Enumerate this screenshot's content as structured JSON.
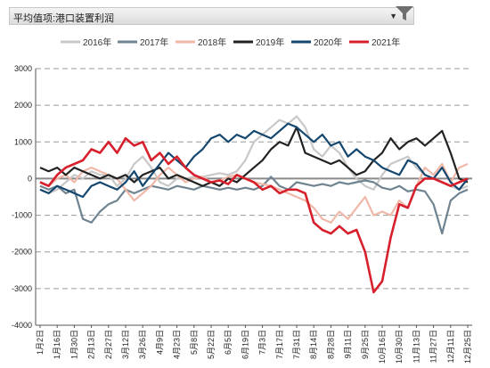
{
  "header": {
    "title": "平均值项:港口装置利润"
  },
  "chart_data": {
    "type": "line",
    "title": "",
    "xlabel": "",
    "ylabel": "",
    "ylim": [
      -4000,
      3000
    ],
    "yticks": [
      3000,
      2000,
      1000,
      0,
      -1000,
      -2000,
      -3000,
      -4000
    ],
    "x_tick_labels": [
      "1月2日",
      "1月16日",
      "1月30日",
      "2月13日",
      "2月27日",
      "3月12日",
      "3月26日",
      "4月9日",
      "4月23日",
      "5月8日",
      "5月22日",
      "6月5日",
      "6月19日",
      "7月3日",
      "7月17日",
      "7月31日",
      "8月14日",
      "8月28日",
      "9月11日",
      "9月25日",
      "10月16日",
      "10月30日",
      "11月13日",
      "11月27日",
      "12月11日",
      "12月25日"
    ],
    "x_index_range": [
      0,
      25
    ],
    "grid": "horizontal dashed",
    "legend_position": "top",
    "series": [
      {
        "name": "2016年",
        "color": "#c8c8c8",
        "points": [
          [
            0,
            -300
          ],
          [
            0.5,
            -400
          ],
          [
            1,
            -300
          ],
          [
            1.5,
            -100
          ],
          [
            2,
            100
          ],
          [
            2.5,
            0
          ],
          [
            3,
            200
          ],
          [
            3.5,
            100
          ],
          [
            4,
            100
          ],
          [
            4.5,
            -200
          ],
          [
            5,
            0
          ],
          [
            5.5,
            400
          ],
          [
            6,
            600
          ],
          [
            6.5,
            300
          ],
          [
            7,
            -100
          ],
          [
            7.5,
            -200
          ],
          [
            8,
            0
          ],
          [
            8.5,
            0
          ],
          [
            9,
            50
          ],
          [
            9.5,
            50
          ],
          [
            10,
            100
          ],
          [
            10.5,
            150
          ],
          [
            11,
            100
          ],
          [
            11.5,
            200
          ],
          [
            12,
            500
          ],
          [
            12.5,
            1000
          ],
          [
            13,
            1200
          ],
          [
            13.5,
            1400
          ],
          [
            14,
            1600
          ],
          [
            14.5,
            1500
          ],
          [
            15,
            1700
          ],
          [
            15.5,
            1400
          ],
          [
            16,
            800
          ],
          [
            16.5,
            600
          ],
          [
            17,
            900
          ],
          [
            17.5,
            700
          ],
          [
            18,
            300
          ],
          [
            18.5,
            0
          ],
          [
            19,
            -200
          ],
          [
            19.5,
            -300
          ],
          [
            20,
            100
          ],
          [
            20.5,
            400
          ],
          [
            21,
            500
          ],
          [
            21.5,
            600
          ],
          [
            22,
            300
          ],
          [
            22.5,
            100
          ],
          [
            23,
            0
          ],
          [
            23.5,
            -100
          ],
          [
            24,
            -200
          ],
          [
            24.5,
            -300
          ],
          [
            25,
            -200
          ]
        ]
      },
      {
        "name": "2017年",
        "color": "#6f8390",
        "points": [
          [
            0,
            -200
          ],
          [
            0.5,
            -300
          ],
          [
            1,
            -200
          ],
          [
            1.5,
            -400
          ],
          [
            2,
            -300
          ],
          [
            2.5,
            -1100
          ],
          [
            3,
            -1200
          ],
          [
            3.5,
            -900
          ],
          [
            4,
            -700
          ],
          [
            4.5,
            -600
          ],
          [
            5,
            -300
          ],
          [
            5.5,
            -400
          ],
          [
            6,
            -300
          ],
          [
            6.5,
            -200
          ],
          [
            7,
            -250
          ],
          [
            7.5,
            -300
          ],
          [
            8,
            -200
          ],
          [
            8.5,
            -250
          ],
          [
            9,
            -300
          ],
          [
            9.5,
            -200
          ],
          [
            10,
            -250
          ],
          [
            10.5,
            -300
          ],
          [
            11,
            -250
          ],
          [
            11.5,
            -300
          ],
          [
            12,
            -250
          ],
          [
            12.5,
            -300
          ],
          [
            13,
            -200
          ],
          [
            13.5,
            50
          ],
          [
            14,
            -200
          ],
          [
            14.5,
            -300
          ],
          [
            15,
            -100
          ],
          [
            15.5,
            -150
          ],
          [
            16,
            -200
          ],
          [
            16.5,
            -150
          ],
          [
            17,
            -200
          ],
          [
            17.5,
            -100
          ],
          [
            18,
            -150
          ],
          [
            18.5,
            -100
          ],
          [
            19,
            -50
          ],
          [
            19.5,
            -100
          ],
          [
            20,
            -250
          ],
          [
            20.5,
            -300
          ],
          [
            21,
            -200
          ],
          [
            21.5,
            -350
          ],
          [
            22,
            -300
          ],
          [
            22.5,
            -350
          ],
          [
            23,
            -700
          ],
          [
            23.5,
            -1500
          ],
          [
            24,
            -600
          ],
          [
            24.5,
            -400
          ],
          [
            25,
            -300
          ]
        ]
      },
      {
        "name": "2018年",
        "color": "#f0b8a8",
        "points": [
          [
            0,
            -100
          ],
          [
            0.5,
            -200
          ],
          [
            1,
            0
          ],
          [
            1.5,
            100
          ],
          [
            2,
            -100
          ],
          [
            2.5,
            200
          ],
          [
            3,
            300
          ],
          [
            3.5,
            200
          ],
          [
            4,
            100
          ],
          [
            4.5,
            0
          ],
          [
            5,
            -300
          ],
          [
            5.5,
            -600
          ],
          [
            6,
            -400
          ],
          [
            6.5,
            -200
          ],
          [
            7,
            100
          ],
          [
            7.5,
            300
          ],
          [
            8,
            100
          ],
          [
            8.5,
            -100
          ],
          [
            9,
            0
          ],
          [
            9.5,
            50
          ],
          [
            10,
            -100
          ],
          [
            10.5,
            -50
          ],
          [
            11,
            50
          ],
          [
            11.5,
            100
          ],
          [
            12,
            0
          ],
          [
            12.5,
            -100
          ],
          [
            13,
            -150
          ],
          [
            13.5,
            -200
          ],
          [
            14,
            -300
          ],
          [
            14.5,
            -400
          ],
          [
            15,
            -500
          ],
          [
            15.5,
            -600
          ],
          [
            16,
            -800
          ],
          [
            16.5,
            -1100
          ],
          [
            17,
            -1200
          ],
          [
            17.5,
            -900
          ],
          [
            18,
            -1100
          ],
          [
            18.5,
            -800
          ],
          [
            19,
            -500
          ],
          [
            19.5,
            -1000
          ],
          [
            20,
            -900
          ],
          [
            20.5,
            -1000
          ],
          [
            21,
            -600
          ],
          [
            21.5,
            -800
          ],
          [
            22,
            -200
          ],
          [
            22.5,
            300
          ],
          [
            23,
            100
          ],
          [
            23.5,
            400
          ],
          [
            24,
            -100
          ],
          [
            24.5,
            300
          ],
          [
            25,
            400
          ]
        ]
      },
      {
        "name": "2019年",
        "color": "#222222",
        "points": [
          [
            0,
            300
          ],
          [
            0.5,
            200
          ],
          [
            1,
            300
          ],
          [
            1.5,
            100
          ],
          [
            2,
            300
          ],
          [
            2.5,
            200
          ],
          [
            3,
            100
          ],
          [
            3.5,
            0
          ],
          [
            4,
            100
          ],
          [
            4.5,
            0
          ],
          [
            5,
            100
          ],
          [
            5.5,
            -100
          ],
          [
            6,
            100
          ],
          [
            6.5,
            200
          ],
          [
            7,
            300
          ],
          [
            7.5,
            0
          ],
          [
            8,
            100
          ],
          [
            8.5,
            0
          ],
          [
            9,
            -100
          ],
          [
            9.5,
            -200
          ],
          [
            10,
            -100
          ],
          [
            10.5,
            -200
          ],
          [
            11,
            0
          ],
          [
            11.5,
            -100
          ],
          [
            12,
            100
          ],
          [
            12.5,
            300
          ],
          [
            13,
            500
          ],
          [
            13.5,
            800
          ],
          [
            14,
            1000
          ],
          [
            14.5,
            900
          ],
          [
            15,
            1400
          ],
          [
            15.5,
            700
          ],
          [
            16,
            600
          ],
          [
            16.5,
            500
          ],
          [
            17,
            400
          ],
          [
            17.5,
            500
          ],
          [
            18,
            300
          ],
          [
            18.5,
            100
          ],
          [
            19,
            200
          ],
          [
            19.5,
            500
          ],
          [
            20,
            700
          ],
          [
            20.5,
            1100
          ],
          [
            21,
            800
          ],
          [
            21.5,
            1000
          ],
          [
            22,
            1100
          ],
          [
            22.5,
            900
          ],
          [
            23,
            1100
          ],
          [
            23.5,
            1300
          ],
          [
            24,
            700
          ],
          [
            24.5,
            0
          ],
          [
            25,
            -100
          ]
        ]
      },
      {
        "name": "2020年",
        "color": "#14466e",
        "points": [
          [
            0,
            -300
          ],
          [
            0.5,
            -400
          ],
          [
            1,
            -200
          ],
          [
            1.5,
            -300
          ],
          [
            2,
            -400
          ],
          [
            2.5,
            -500
          ],
          [
            3,
            -200
          ],
          [
            3.5,
            -100
          ],
          [
            4,
            -200
          ],
          [
            4.5,
            -300
          ],
          [
            5,
            -100
          ],
          [
            5.5,
            200
          ],
          [
            6,
            -200
          ],
          [
            6.5,
            100
          ],
          [
            7,
            400
          ],
          [
            7.5,
            700
          ],
          [
            8,
            500
          ],
          [
            8.5,
            300
          ],
          [
            9,
            600
          ],
          [
            9.5,
            800
          ],
          [
            10,
            1100
          ],
          [
            10.5,
            1200
          ],
          [
            11,
            1000
          ],
          [
            11.5,
            1200
          ],
          [
            12,
            1100
          ],
          [
            12.5,
            1300
          ],
          [
            13,
            1200
          ],
          [
            13.5,
            1100
          ],
          [
            14,
            1300
          ],
          [
            14.5,
            1500
          ],
          [
            15,
            1400
          ],
          [
            15.5,
            1200
          ],
          [
            16,
            1000
          ],
          [
            16.5,
            1200
          ],
          [
            17,
            900
          ],
          [
            17.5,
            1000
          ],
          [
            18,
            600
          ],
          [
            18.5,
            800
          ],
          [
            19,
            600
          ],
          [
            19.5,
            500
          ],
          [
            20,
            300
          ],
          [
            20.5,
            200
          ],
          [
            21,
            100
          ],
          [
            21.5,
            500
          ],
          [
            22,
            400
          ],
          [
            22.5,
            100
          ],
          [
            23,
            0
          ],
          [
            23.5,
            300
          ],
          [
            24,
            -100
          ],
          [
            24.5,
            -300
          ],
          [
            25,
            0
          ]
        ]
      },
      {
        "name": "2021年",
        "color": "#d7202c",
        "points": [
          [
            0,
            -100
          ],
          [
            0.5,
            -200
          ],
          [
            1,
            100
          ],
          [
            1.5,
            300
          ],
          [
            2,
            400
          ],
          [
            2.5,
            500
          ],
          [
            3,
            800
          ],
          [
            3.5,
            700
          ],
          [
            4,
            1000
          ],
          [
            4.5,
            700
          ],
          [
            5,
            1100
          ],
          [
            5.5,
            900
          ],
          [
            6,
            1000
          ],
          [
            6.5,
            500
          ],
          [
            7,
            700
          ],
          [
            7.5,
            400
          ],
          [
            8,
            600
          ],
          [
            8.5,
            300
          ],
          [
            9,
            100
          ],
          [
            9.5,
            0
          ],
          [
            10,
            -100
          ],
          [
            10.5,
            -50
          ],
          [
            11,
            -150
          ],
          [
            11.5,
            100
          ],
          [
            12,
            0
          ],
          [
            12.5,
            -100
          ],
          [
            13,
            -300
          ],
          [
            13.5,
            -200
          ],
          [
            14,
            -400
          ],
          [
            14.5,
            -300
          ],
          [
            15,
            -300
          ],
          [
            15.5,
            -400
          ],
          [
            16,
            -1200
          ],
          [
            16.5,
            -1400
          ],
          [
            17,
            -1500
          ],
          [
            17.5,
            -1300
          ],
          [
            18,
            -1500
          ],
          [
            18.5,
            -1400
          ],
          [
            19,
            -2000
          ],
          [
            19.5,
            -3100
          ],
          [
            20,
            -2800
          ],
          [
            20.5,
            -1600
          ],
          [
            21,
            -700
          ],
          [
            21.5,
            -800
          ],
          [
            22,
            -200
          ],
          [
            22.5,
            0
          ],
          [
            23,
            0
          ],
          [
            23.5,
            -100
          ],
          [
            24,
            -200
          ],
          [
            24.5,
            -100
          ],
          [
            25,
            0
          ]
        ]
      }
    ]
  }
}
